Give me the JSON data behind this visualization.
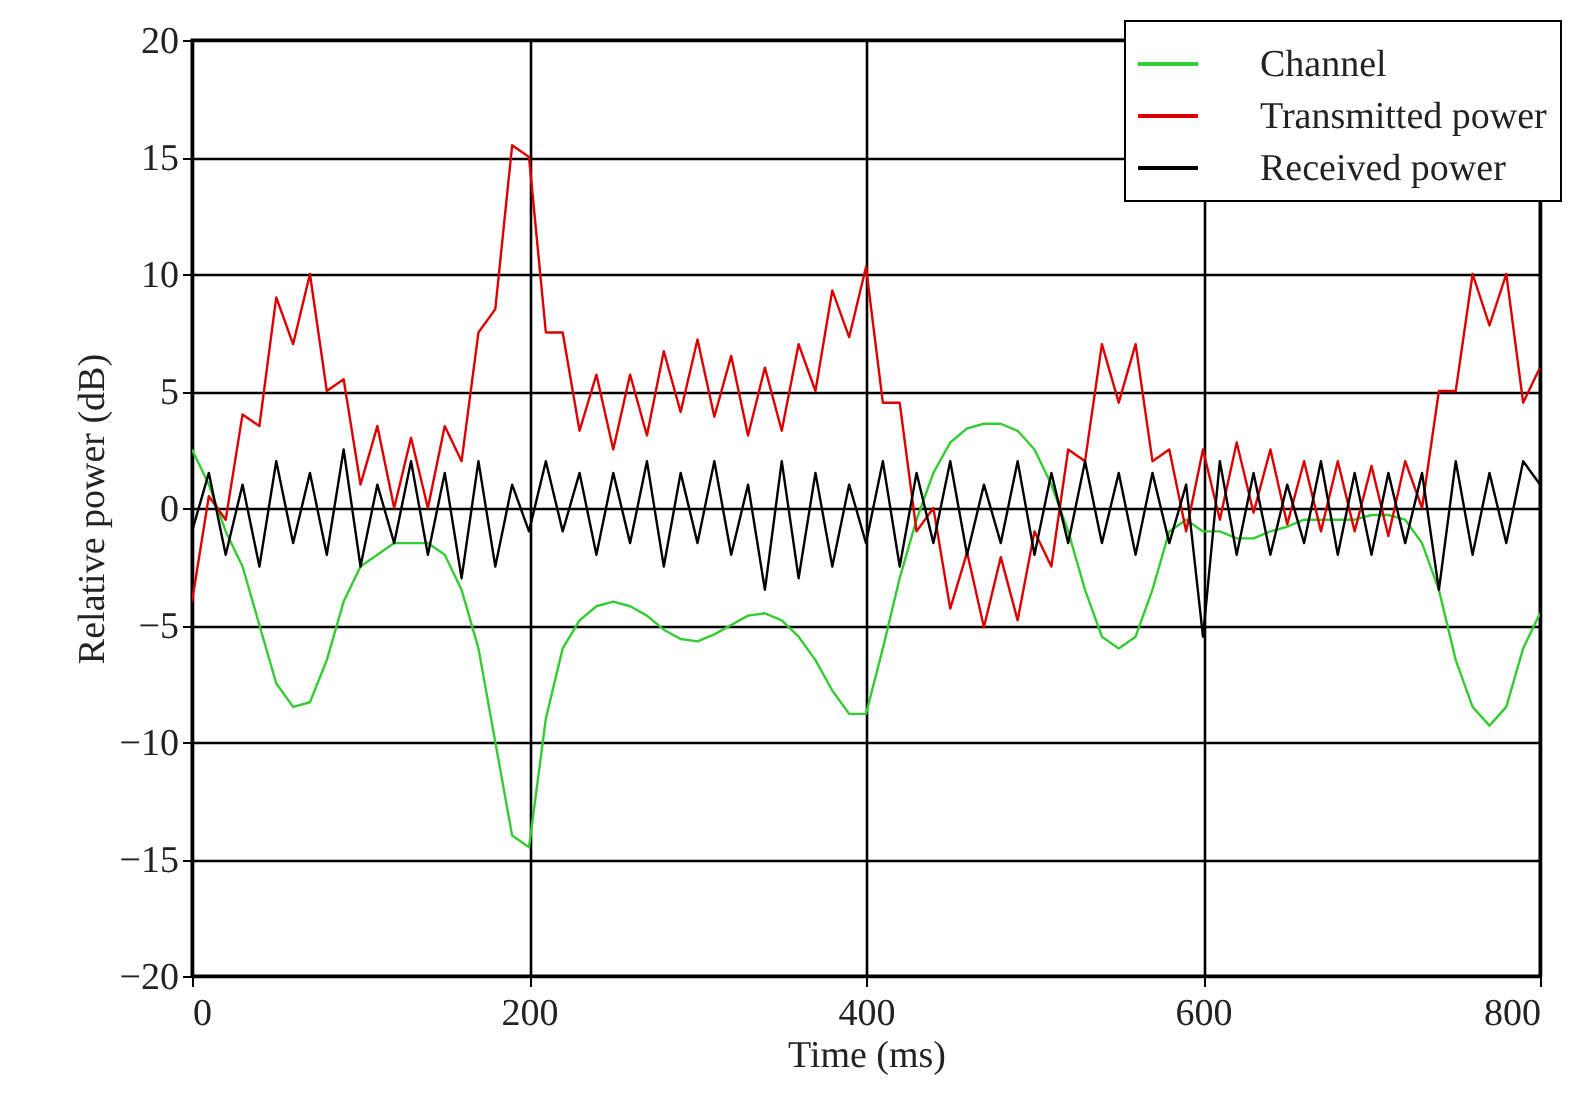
{
  "chart_data": {
    "type": "line",
    "xlabel": "Time (ms)",
    "ylabel": "Relative power (dB)",
    "xlim": [
      0,
      800
    ],
    "xticks": [
      0,
      200,
      400,
      600,
      800
    ],
    "ylim": [
      -20,
      20
    ],
    "yticks": [
      -20,
      -15,
      -10,
      -5,
      0,
      5,
      10,
      15,
      20
    ],
    "grid": true,
    "legend": "top right",
    "line_style": "solid",
    "x": [
      0,
      10,
      20,
      30,
      40,
      50,
      60,
      70,
      80,
      90,
      100,
      110,
      120,
      130,
      140,
      150,
      160,
      170,
      180,
      190,
      200,
      210,
      220,
      230,
      240,
      250,
      260,
      270,
      280,
      290,
      300,
      310,
      320,
      330,
      340,
      350,
      360,
      370,
      380,
      390,
      400,
      410,
      420,
      430,
      440,
      450,
      460,
      470,
      480,
      490,
      500,
      510,
      520,
      530,
      540,
      550,
      560,
      570,
      580,
      590,
      600,
      610,
      620,
      630,
      640,
      650,
      660,
      670,
      680,
      690,
      700,
      710,
      720,
      730,
      740,
      750,
      760,
      770,
      780,
      790,
      800
    ],
    "series": [
      {
        "name": "Channel",
        "color": "#33cc33",
        "values": [
          2.5,
          1,
          -1,
          -2.5,
          -5,
          -7.5,
          -8.5,
          -8.3,
          -6.5,
          -4,
          -2.5,
          -2,
          -1.5,
          -1.5,
          -1.5,
          -2,
          -3.5,
          -6,
          -10,
          -14,
          -14.5,
          -9,
          -6,
          -4.8,
          -4.2,
          -4,
          -4.2,
          -4.6,
          -5.2,
          -5.6,
          -5.7,
          -5.4,
          -5,
          -4.6,
          -4.5,
          -4.8,
          -5.5,
          -6.5,
          -7.8,
          -8.8,
          -8.8,
          -6,
          -3,
          -0.5,
          1.5,
          2.8,
          3.4,
          3.6,
          3.6,
          3.3,
          2.5,
          1,
          -1,
          -3.5,
          -5.5,
          -6,
          -5.5,
          -3.5,
          -1,
          -0.5,
          -1,
          -1,
          -1.3,
          -1.3,
          -1,
          -0.8,
          -0.5,
          -0.5,
          -0.5,
          -0.5,
          -0.3,
          -0.3,
          -0.5,
          -1.5,
          -3.5,
          -6.5,
          -8.5,
          -9.3,
          -8.5,
          -6,
          -4.5
        ]
      },
      {
        "name": "Transmitted power",
        "color": "#dd0000",
        "values": [
          -4,
          0.5,
          -0.5,
          4,
          3.5,
          9,
          7,
          10,
          5,
          5.5,
          1,
          3.5,
          0,
          3,
          0,
          3.5,
          2,
          7.5,
          8.5,
          15.5,
          15,
          7.5,
          7.5,
          3.3,
          5.7,
          2.5,
          5.7,
          3.1,
          6.7,
          4.1,
          7.2,
          3.9,
          6.5,
          3.1,
          6,
          3.3,
          7,
          5,
          9.3,
          7.3,
          10.3,
          4.5,
          4.5,
          -1,
          0,
          -4.3,
          -1.9,
          -5.1,
          -2.1,
          -4.8,
          -1,
          -2.5,
          2.5,
          2,
          7,
          4.5,
          7,
          2,
          2.5,
          -1,
          2.5,
          -0.5,
          2.8,
          -0.2,
          2.5,
          -0.7,
          2,
          -1,
          2,
          -1,
          1.8,
          -1.2,
          2,
          0,
          5,
          5,
          10,
          7.8,
          10,
          4.5,
          6
        ]
      },
      {
        "name": "Received power",
        "color": "#000000",
        "values": [
          -1,
          1.5,
          -2,
          1,
          -2.5,
          2,
          -1.5,
          1.5,
          -2,
          2.5,
          -2.5,
          1,
          -1.5,
          2,
          -2,
          1.5,
          -3,
          2,
          -2.5,
          1,
          -1,
          2,
          -1,
          1.5,
          -2,
          1.5,
          -1.5,
          2,
          -2.5,
          1.5,
          -1.5,
          2,
          -2,
          1,
          -3.5,
          2,
          -3,
          1.5,
          -2.5,
          1,
          -1.5,
          2,
          -2.5,
          1.5,
          -1.5,
          2,
          -2,
          1,
          -1.5,
          2,
          -2,
          1.5,
          -1.5,
          2,
          -1.5,
          1.5,
          -2,
          1.5,
          -1.5,
          1,
          -5.5,
          2,
          -2,
          1.5,
          -2,
          1,
          -1.5,
          2,
          -2,
          1.5,
          -2,
          1.5,
          -1.5,
          1.5,
          -3.5,
          2,
          -2,
          1.5,
          -1.5,
          2,
          1
        ]
      }
    ]
  }
}
